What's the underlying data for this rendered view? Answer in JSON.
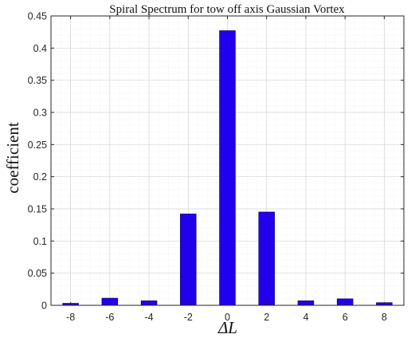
{
  "chart_data": {
    "type": "bar",
    "title": "Spiral Spectrum  for tow off axis Gaussian  Vortex",
    "xlabel": "ΔL",
    "ylabel": "coefficient",
    "categories": [
      "-8",
      "-6",
      "-4",
      "-2",
      "0",
      "2",
      "4",
      "6",
      "8"
    ],
    "x": [
      -8,
      -6,
      -4,
      -2,
      0,
      2,
      4,
      6,
      8
    ],
    "values": [
      0.003,
      0.011,
      0.007,
      0.142,
      0.427,
      0.145,
      0.007,
      0.01,
      0.004
    ],
    "xlim": [
      -9,
      9
    ],
    "ylim": [
      0,
      0.45
    ],
    "yticks": [
      "0",
      "0.05",
      "0.1",
      "0.15",
      "0.2",
      "0.25",
      "0.3",
      "0.35",
      "0.4",
      "0.45"
    ],
    "xticks": [
      "-8",
      "-6",
      "-4",
      "-2",
      "0",
      "2",
      "4",
      "6",
      "8"
    ],
    "grid": "on",
    "bar_color": "#2200ee",
    "bar_edge_color": "#10007a"
  }
}
